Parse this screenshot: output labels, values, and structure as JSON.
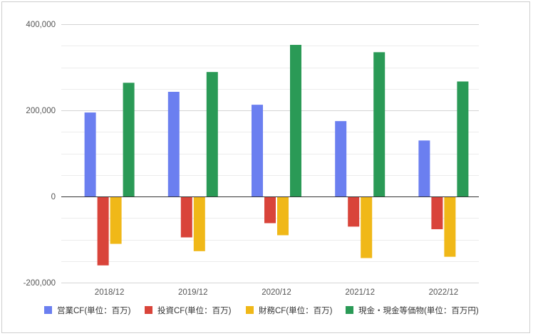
{
  "chart_data": {
    "type": "bar",
    "title": "",
    "xlabel": "",
    "ylabel": "",
    "categories": [
      "2018/12",
      "2019/12",
      "2020/12",
      "2021/12",
      "2022/12"
    ],
    "ylim": [
      -200000,
      400000
    ],
    "yticks": [
      -200000,
      0,
      200000,
      400000
    ],
    "ytick_labels": [
      "-200,000",
      "0",
      "200,000",
      "400,000"
    ],
    "grid": true,
    "legend_position": "bottom",
    "series": [
      {
        "name": "営業CF(単位：百万)",
        "color": "#6b7ff0",
        "values": [
          195000,
          243000,
          213000,
          175000,
          130000
        ]
      },
      {
        "name": "投資CF(単位：百万)",
        "color": "#d9443a",
        "values": [
          -160000,
          -95000,
          -62000,
          -70000,
          -76000
        ]
      },
      {
        "name": "財務CF(単位：百万)",
        "color": "#f0b818",
        "values": [
          -110000,
          -127000,
          -90000,
          -143000,
          -140000
        ]
      },
      {
        "name": "現金・現金等価物(単位：百万円)",
        "color": "#2a9a56",
        "values": [
          264000,
          289000,
          352000,
          335000,
          267000
        ]
      }
    ]
  }
}
